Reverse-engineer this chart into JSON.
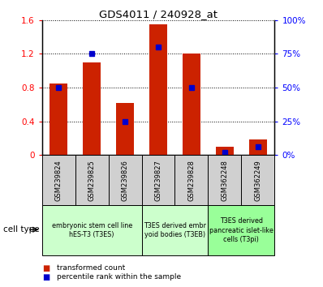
{
  "title": "GDS4011 / 240928_at",
  "samples": [
    "GSM239824",
    "GSM239825",
    "GSM239826",
    "GSM239827",
    "GSM239828",
    "GSM362248",
    "GSM362249"
  ],
  "red_values": [
    0.85,
    1.1,
    0.62,
    1.55,
    1.2,
    0.1,
    0.18
  ],
  "blue_values_pct": [
    50,
    75,
    25,
    80,
    50,
    2,
    6
  ],
  "ylim_left": [
    0,
    1.6
  ],
  "ylim_right": [
    0,
    100
  ],
  "yticks_left": [
    0,
    0.4,
    0.8,
    1.2,
    1.6
  ],
  "yticks_right": [
    0,
    25,
    50,
    75,
    100
  ],
  "ytick_labels_left": [
    "0",
    "0.4",
    "0.8",
    "1.2",
    "1.6"
  ],
  "ytick_labels_right": [
    "0%",
    "25%",
    "50%",
    "75%",
    "100%"
  ],
  "groups": [
    {
      "label": "embryonic stem cell line\nhES-T3 (T3ES)",
      "indices": [
        0,
        1,
        2
      ],
      "color": "#ccffcc"
    },
    {
      "label": "T3ES derived embr\nyoid bodies (T3EB)",
      "indices": [
        3,
        4
      ],
      "color": "#ccffcc"
    },
    {
      "label": "T3ES derived\npancreatic islet-like\ncells (T3pi)",
      "indices": [
        5,
        6
      ],
      "color": "#99ff99"
    }
  ],
  "bar_color": "#cc2200",
  "dot_color": "#0000cc",
  "cell_type_label": "cell type",
  "legend_red": "transformed count",
  "legend_blue": "percentile rank within the sample",
  "sample_bg": "#d0d0d0"
}
